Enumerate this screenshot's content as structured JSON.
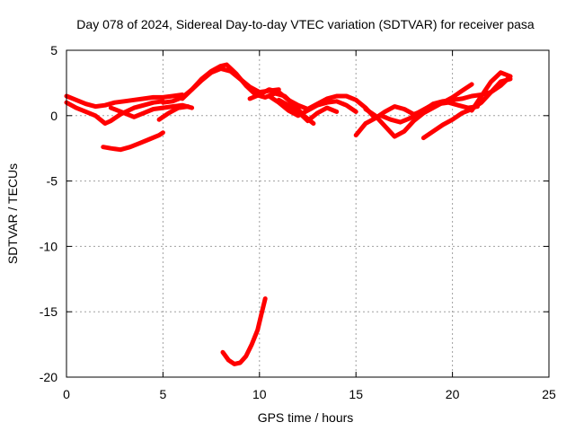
{
  "chart_data": {
    "type": "scatter",
    "title": "Day 078 of 2024, Sidereal Day-to-day VTEC variation (SDTVAR) for receiver pasa",
    "xlabel": "GPS time / hours",
    "ylabel": "SDTVAR / TECUs",
    "xlim": [
      0,
      25
    ],
    "ylim": [
      -20,
      5
    ],
    "xticks": [
      0,
      5,
      10,
      15,
      20,
      25
    ],
    "yticks": [
      5,
      0,
      -5,
      -10,
      -15,
      -20
    ],
    "xtick_labels": [
      "0",
      "5",
      "10",
      "15",
      "20",
      "25"
    ],
    "ytick_labels": [
      "5",
      "0",
      "-5",
      "-10",
      "-15",
      "-20"
    ],
    "grid": true,
    "marker_color": "#ff0000",
    "series": [
      {
        "name": "trace-1",
        "x": [
          0.0,
          0.5,
          1.0,
          1.5,
          2.0,
          2.5,
          3.0,
          3.5,
          4.0,
          4.5,
          5.0,
          5.5,
          6.0
        ],
        "y": [
          1.5,
          1.2,
          0.9,
          0.7,
          0.8,
          1.0,
          1.1,
          1.2,
          1.3,
          1.4,
          1.4,
          1.5,
          1.6
        ]
      },
      {
        "name": "trace-2",
        "x": [
          0.0,
          0.5,
          1.0,
          1.5,
          2.0,
          2.3,
          2.8,
          3.5,
          4.0,
          4.5,
          5.0
        ],
        "y": [
          1.0,
          0.6,
          0.3,
          0.0,
          -0.6,
          -0.4,
          0.1,
          0.6,
          0.8,
          1.0,
          1.1
        ]
      },
      {
        "name": "trace-3",
        "x": [
          2.3,
          3.0,
          3.5,
          4.0,
          4.5,
          5.0,
          5.5,
          6.0,
          6.5
        ],
        "y": [
          0.6,
          0.2,
          -0.1,
          0.2,
          0.5,
          0.6,
          0.7,
          0.8,
          0.6
        ]
      },
      {
        "name": "trace-4",
        "x": [
          1.9,
          2.3,
          2.8,
          3.3,
          3.8,
          4.3,
          4.8,
          5.0
        ],
        "y": [
          -2.4,
          -2.5,
          -2.6,
          -2.4,
          -2.1,
          -1.8,
          -1.5,
          -1.3
        ]
      },
      {
        "name": "trace-5",
        "x": [
          4.8,
          5.3,
          5.8,
          6.3
        ],
        "y": [
          -0.3,
          0.2,
          0.6,
          0.7
        ]
      },
      {
        "name": "trace-6",
        "x": [
          5.0,
          5.5,
          6.0,
          6.5,
          7.0,
          7.5,
          8.0,
          8.5,
          9.0,
          9.5,
          10.0,
          10.5,
          11.0
        ],
        "y": [
          1.0,
          1.1,
          1.4,
          2.0,
          2.7,
          3.3,
          3.6,
          3.4,
          2.8,
          2.2,
          1.8,
          1.9,
          2.0
        ]
      },
      {
        "name": "trace-7",
        "x": [
          6.0,
          6.5,
          7.0,
          7.5,
          8.0,
          8.3,
          8.8,
          9.3,
          9.8,
          10.3,
          10.8,
          11.3,
          11.8,
          12.3,
          12.8
        ],
        "y": [
          1.3,
          2.0,
          2.8,
          3.4,
          3.8,
          3.9,
          3.2,
          2.3,
          1.6,
          1.4,
          1.7,
          1.5,
          0.8,
          0.0,
          -0.6
        ]
      },
      {
        "name": "trace-8",
        "x": [
          9.5,
          10.0,
          10.5,
          11.0,
          11.5,
          12.0,
          12.5,
          13.0,
          13.5,
          14.0,
          14.5,
          15.0,
          15.5,
          16.0
        ],
        "y": [
          1.3,
          1.6,
          2.0,
          1.8,
          1.2,
          0.8,
          0.5,
          0.9,
          1.3,
          1.5,
          1.5,
          1.2,
          0.6,
          -0.2
        ]
      },
      {
        "name": "trace-9",
        "x": [
          10.5,
          11.0,
          11.5,
          12.0,
          12.5,
          13.0,
          13.5,
          14.0,
          14.5,
          15.0
        ],
        "y": [
          1.5,
          1.0,
          0.4,
          0.0,
          0.4,
          0.8,
          1.0,
          1.1,
          0.8,
          0.3
        ]
      },
      {
        "name": "trace-10",
        "x": [
          11.0,
          11.5,
          12.0,
          12.5,
          13.0,
          13.5,
          14.0
        ],
        "y": [
          1.2,
          0.8,
          0.3,
          -0.4,
          0.2,
          0.6,
          0.3
        ]
      },
      {
        "name": "trace-11",
        "x": [
          15.0,
          15.5,
          16.0,
          16.5,
          17.0,
          17.5,
          18.0,
          18.5,
          19.0,
          19.5,
          20.0,
          20.5,
          21.0,
          21.5,
          22.0,
          22.5,
          23.0
        ],
        "y": [
          -1.5,
          -0.6,
          -0.2,
          0.3,
          0.7,
          0.5,
          0.1,
          0.4,
          0.9,
          1.1,
          1.2,
          1.3,
          1.5,
          1.6,
          1.8,
          2.3,
          3.0
        ]
      },
      {
        "name": "trace-12",
        "x": [
          15.5,
          16.0,
          16.5,
          17.0,
          17.5,
          18.0,
          18.5,
          19.0,
          19.5,
          20.0,
          20.5,
          21.0
        ],
        "y": [
          0.5,
          0.0,
          -0.8,
          -1.6,
          -1.2,
          -0.4,
          0.2,
          0.6,
          1.0,
          1.4,
          1.9,
          2.4
        ]
      },
      {
        "name": "trace-13",
        "x": [
          16.3,
          16.8,
          17.3,
          17.8,
          18.3,
          18.8,
          19.3,
          19.8,
          20.3,
          20.8,
          21.3
        ],
        "y": [
          0.0,
          -0.3,
          -0.5,
          -0.2,
          0.3,
          0.7,
          0.9,
          1.0,
          0.8,
          0.6,
          0.7
        ]
      },
      {
        "name": "trace-14",
        "x": [
          18.5,
          19.0,
          19.5,
          20.0,
          20.5,
          21.0,
          21.5,
          22.0,
          22.5,
          23.0
        ],
        "y": [
          -1.7,
          -1.2,
          -0.7,
          -0.3,
          0.2,
          0.5,
          1.0,
          1.8,
          2.6,
          2.8
        ]
      },
      {
        "name": "trace-15",
        "x": [
          21.0,
          21.5,
          22.0,
          22.5,
          23.0
        ],
        "y": [
          0.4,
          1.5,
          2.6,
          3.3,
          3.0
        ]
      },
      {
        "name": "trace-16",
        "x": [
          8.1,
          8.4,
          8.7,
          9.0,
          9.3,
          9.6,
          9.9,
          10.1,
          10.3
        ],
        "y": [
          -18.1,
          -18.7,
          -19.0,
          -18.9,
          -18.4,
          -17.5,
          -16.4,
          -15.2,
          -14.0
        ]
      }
    ]
  }
}
